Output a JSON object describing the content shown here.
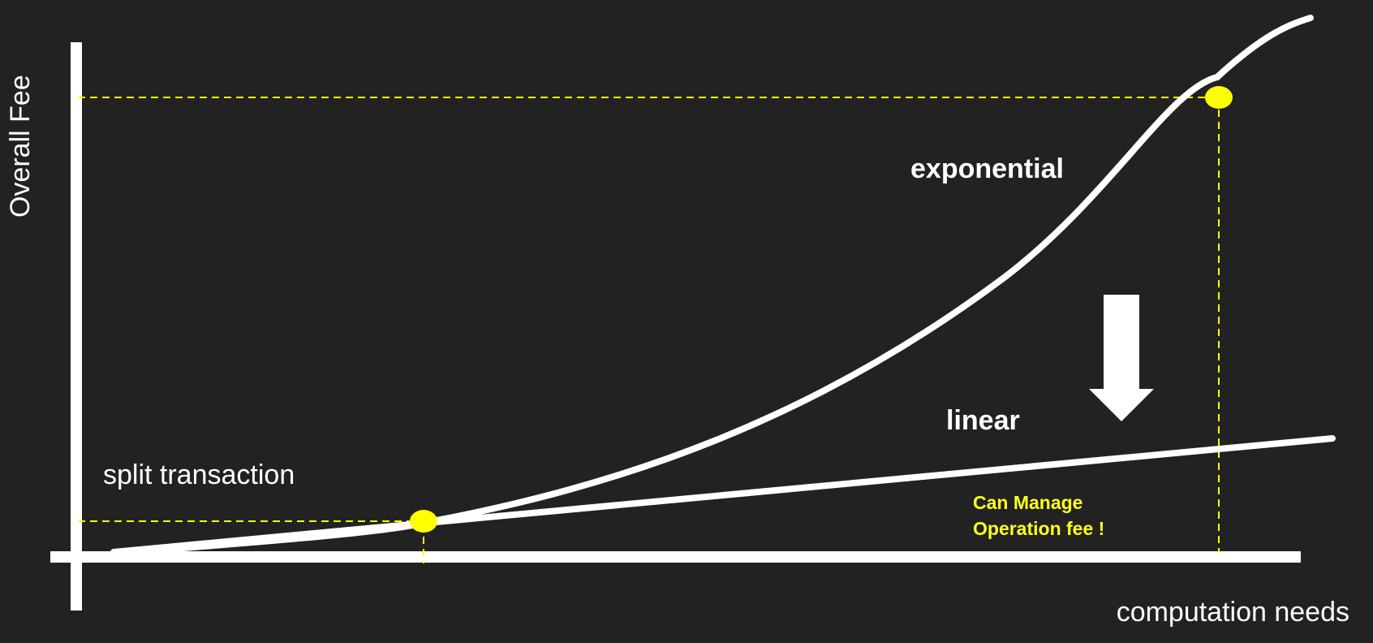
{
  "colors": {
    "background": "#222222",
    "foreground": "#ffffff",
    "accent": "#ffff00"
  },
  "axes": {
    "y_label": "Overall Fee",
    "x_label": "computation needs"
  },
  "curves": {
    "exponential_label": "exponential",
    "linear_label": "linear"
  },
  "annotations": {
    "split_label": "split transaction",
    "note_lines": [
      "Can Manage",
      "Operation fee !"
    ]
  },
  "icons": {
    "reduction_arrow": "down-arrow-icon",
    "intersection_marker": "yellow-dot-marker"
  }
}
